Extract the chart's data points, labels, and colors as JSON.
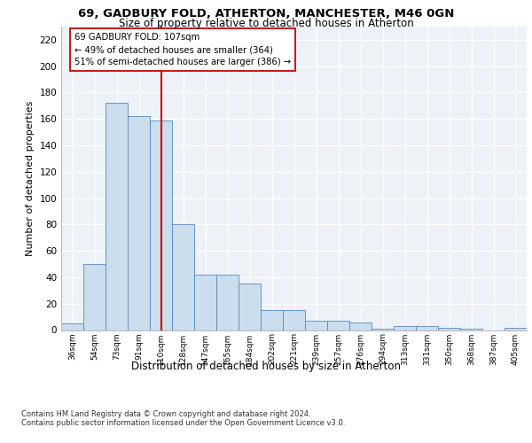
{
  "title1": "69, GADBURY FOLD, ATHERTON, MANCHESTER, M46 0GN",
  "title2": "Size of property relative to detached houses in Atherton",
  "xlabel": "Distribution of detached houses by size in Atherton",
  "ylabel": "Number of detached properties",
  "categories": [
    "36sqm",
    "54sqm",
    "73sqm",
    "91sqm",
    "110sqm",
    "128sqm",
    "147sqm",
    "165sqm",
    "184sqm",
    "202sqm",
    "221sqm",
    "239sqm",
    "257sqm",
    "276sqm",
    "294sqm",
    "313sqm",
    "331sqm",
    "350sqm",
    "368sqm",
    "387sqm",
    "405sqm"
  ],
  "values": [
    5,
    50,
    172,
    162,
    159,
    80,
    42,
    42,
    35,
    15,
    15,
    7,
    7,
    6,
    1,
    3,
    3,
    2,
    1,
    0,
    2
  ],
  "bar_color": "#ccdded",
  "bar_edge_color": "#5588bb",
  "vline_x_index": 4,
  "vline_color": "#cc0000",
  "annotation_text": "69 GADBURY FOLD: 107sqm\n← 49% of detached houses are smaller (364)\n51% of semi-detached houses are larger (386) →",
  "annotation_box_facecolor": "#ffffff",
  "annotation_box_edgecolor": "#cc0000",
  "ylim": [
    0,
    230
  ],
  "yticks": [
    0,
    20,
    40,
    60,
    80,
    100,
    120,
    140,
    160,
    180,
    200,
    220
  ],
  "bg_color": "#edf2f8",
  "grid_color": "#ffffff",
  "footer": "Contains HM Land Registry data © Crown copyright and database right 2024.\nContains public sector information licensed under the Open Government Licence v3.0."
}
